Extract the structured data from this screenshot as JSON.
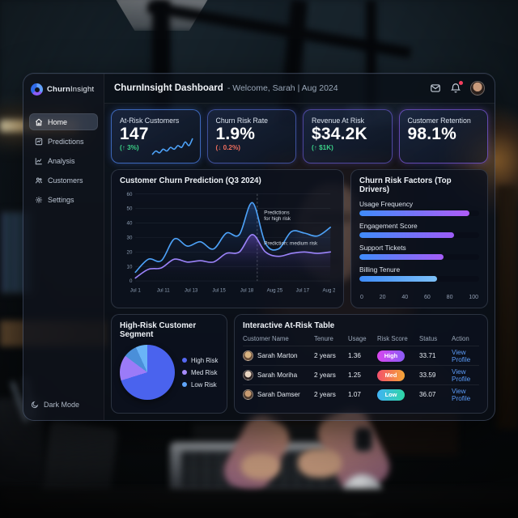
{
  "brand": {
    "bold": "Churn",
    "light": "Insight"
  },
  "header": {
    "title": "ChurnInsight Dashboard",
    "subtitle": "- Welcome, Sarah | Aug 2024",
    "icons": [
      "mail-icon",
      "bell-icon",
      "avatar"
    ]
  },
  "sidebar": {
    "items": [
      {
        "label": "Home",
        "icon": "home-icon",
        "active": true
      },
      {
        "label": "Predictions",
        "icon": "predictions-icon",
        "active": false
      },
      {
        "label": "Analysis",
        "icon": "analysis-icon",
        "active": false
      },
      {
        "label": "Customers",
        "icon": "customers-icon",
        "active": false
      },
      {
        "label": "Settings",
        "icon": "settings-icon",
        "active": false
      }
    ],
    "dark_mode_label": "Dark Mode"
  },
  "kpis": [
    {
      "label": "At-Risk Customers",
      "value": "147",
      "delta": "(↑ 3%)",
      "delta_color": "#3bd188",
      "spark": [
        4,
        6,
        5,
        7,
        6,
        8,
        7,
        9,
        8,
        11,
        9,
        13
      ],
      "spark_color": "#4da2f8"
    },
    {
      "label": "Churn Risk Rate",
      "value": "1.9%",
      "delta": "(↓ 0.2%)",
      "delta_color": "#ef6e5f"
    },
    {
      "label": "Revenue At Risk",
      "value": "$34.2K",
      "delta": "(↑ $1K)",
      "delta_color": "#3bd188"
    },
    {
      "label": "Customer Retention",
      "value": "98.1%",
      "delta": "",
      "delta_color": ""
    }
  ],
  "chart_data": [
    {
      "type": "area",
      "title": "Customer Churn Prediction (Q3 2024)",
      "x_ticks": [
        "Jul 1",
        "Jul 11",
        "Jul 13",
        "Jul 15",
        "Jul 18",
        "Aug 25",
        "Jul 17",
        "Aug 21"
      ],
      "y_ticks": [
        0,
        10,
        20,
        30,
        40,
        50,
        60
      ],
      "ylim": [
        0,
        60
      ],
      "grid": true,
      "divider_frac": 0.625,
      "series": [
        {
          "name": "Predictions for high risk",
          "color": "#4da2f8",
          "fill": "rgba(59,130,246,0.30)",
          "values": [
            6,
            15,
            14,
            29,
            24,
            27,
            22,
            33,
            32,
            54,
            26,
            22,
            34,
            33,
            31,
            37
          ]
        },
        {
          "name": "Prediction: medium risk",
          "color": "#9b83f9",
          "fill": "rgba(139,92,246,0.40)",
          "values": [
            2,
            8,
            9,
            15,
            13,
            14,
            13,
            19,
            20,
            32,
            20,
            17,
            19,
            20,
            19,
            20
          ]
        }
      ],
      "annotations": [
        {
          "lines": [
            "Predictions",
            "for high risk"
          ],
          "x_frac": 0.66,
          "y_value": 46
        },
        {
          "lines": [
            "Prediction: medium risk"
          ],
          "x_frac": 0.66,
          "y_value": 25
        }
      ]
    },
    {
      "type": "bar",
      "title": "Churn Risk Factors (Top Drivers)",
      "orientation": "horizontal",
      "categories": [
        "Usage Frequency",
        "Engagement Score",
        "Support Tickets",
        "Billing Tenure"
      ],
      "values": [
        92,
        79,
        70,
        65
      ],
      "xlim": [
        0,
        100
      ],
      "x_ticks": [
        "0",
        "20",
        "40",
        "60",
        "80",
        "100"
      ],
      "bar_colors": [
        [
          "#3f8cfa",
          "#b05cf7"
        ],
        [
          "#3f8cfa",
          "#9d5cf7"
        ],
        [
          "#3f8cfa",
          "#a55cf7"
        ],
        [
          "#3f8cfa",
          "#7cc0f8"
        ]
      ]
    },
    {
      "type": "pie",
      "title": "High-Risk Customer Segment",
      "slices": [
        {
          "label": "High Risk",
          "value": 66,
          "color": "#4a63ee"
        },
        {
          "label": "Med Risk",
          "value": 15,
          "color": "#9b7bf8"
        },
        {
          "label": "Low Risk",
          "value": 8,
          "color": "#4a8fd9"
        },
        {
          "label": "Low Risk",
          "value": 11,
          "color": "#6ab4f7"
        }
      ],
      "legend": [
        {
          "label": "High Risk",
          "color": "#5568f2"
        },
        {
          "label": "Med Risk",
          "color": "#a78bfa"
        },
        {
          "label": "Low Risk",
          "color": "#60a5fa"
        }
      ],
      "legend_position": "right"
    }
  ],
  "table": {
    "title": "Interactive At-Risk Table",
    "columns": [
      "Customer Name",
      "Tenure",
      "Usage",
      "Risk Score",
      "Status",
      "Action"
    ],
    "rows": [
      {
        "name": "Sarah Marton",
        "tenure": "2 years",
        "usage": "1.36",
        "risk": "High",
        "pill_colors": [
          "#d946ef",
          "#8b5cf6"
        ],
        "status": "33.71",
        "action": "View Profile",
        "avatar_colors": [
          "#d9b483",
          "#6b4f3a"
        ]
      },
      {
        "name": "Sarah Moriha",
        "tenure": "2 years",
        "usage": "1.25",
        "risk": "Med",
        "pill_colors": [
          "#f4506b",
          "#f5a637"
        ],
        "status": "33.59",
        "action": "View Profile",
        "avatar_colors": [
          "#e8d5c2",
          "#2e2424"
        ]
      },
      {
        "name": "Sarah Damser",
        "tenure": "2 years",
        "usage": "1.07",
        "risk": "Low",
        "pill_colors": [
          "#41b3f5",
          "#2fd6a5"
        ],
        "status": "36.07",
        "action": "View Profile",
        "avatar_colors": [
          "#c79b72",
          "#4a382c"
        ]
      }
    ]
  }
}
